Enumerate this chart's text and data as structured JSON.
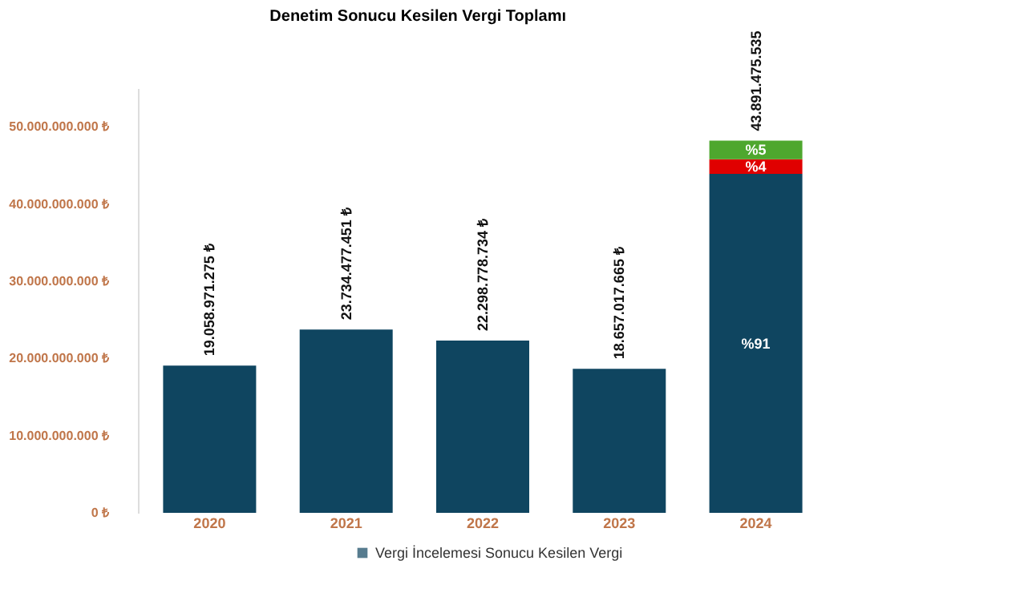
{
  "chart_data": {
    "type": "bar",
    "title": "Denetim Sonucu Kesilen Vergi Toplamı",
    "categories": [
      "2020",
      "2021",
      "2022",
      "2023",
      "2024"
    ],
    "stacked": true,
    "legend": "bottom",
    "grid": false,
    "series": [
      {
        "name": "Vergi İncelemesi Sonucu Kesilen Vergi",
        "color": "#0f4560",
        "values": [
          19058971275,
          23734477451,
          22298778734,
          18657017665,
          43891475535
        ],
        "value_labels": [
          "19.058.971.275 ₺",
          "23.734.477.451 ₺",
          "22.298.778.734 ₺",
          "18.657.017.665 ₺",
          "43.891.475.535"
        ]
      },
      {
        "color": "#e00000",
        "values": [
          null,
          null,
          null,
          null,
          1900000000
        ]
      },
      {
        "color": "#4ea72e",
        "values": [
          null,
          null,
          null,
          null,
          2400000000
        ]
      }
    ],
    "annotations": [
      "%91",
      "%4",
      "%5"
    ],
    "ylim": [
      0,
      55000000000
    ],
    "yticks": [
      {
        "value": 0,
        "label": "0 ₺"
      },
      {
        "value": 10000000000,
        "label": "10.000.000.000 ₺"
      },
      {
        "value": 20000000000,
        "label": "20.000.000.000 ₺"
      },
      {
        "value": 30000000000,
        "label": "30.000.000.000 ₺"
      },
      {
        "value": 40000000000,
        "label": "40.000.000.000 ₺"
      },
      {
        "value": 50000000000,
        "label": "50.000.000.000 ₺"
      }
    ]
  }
}
